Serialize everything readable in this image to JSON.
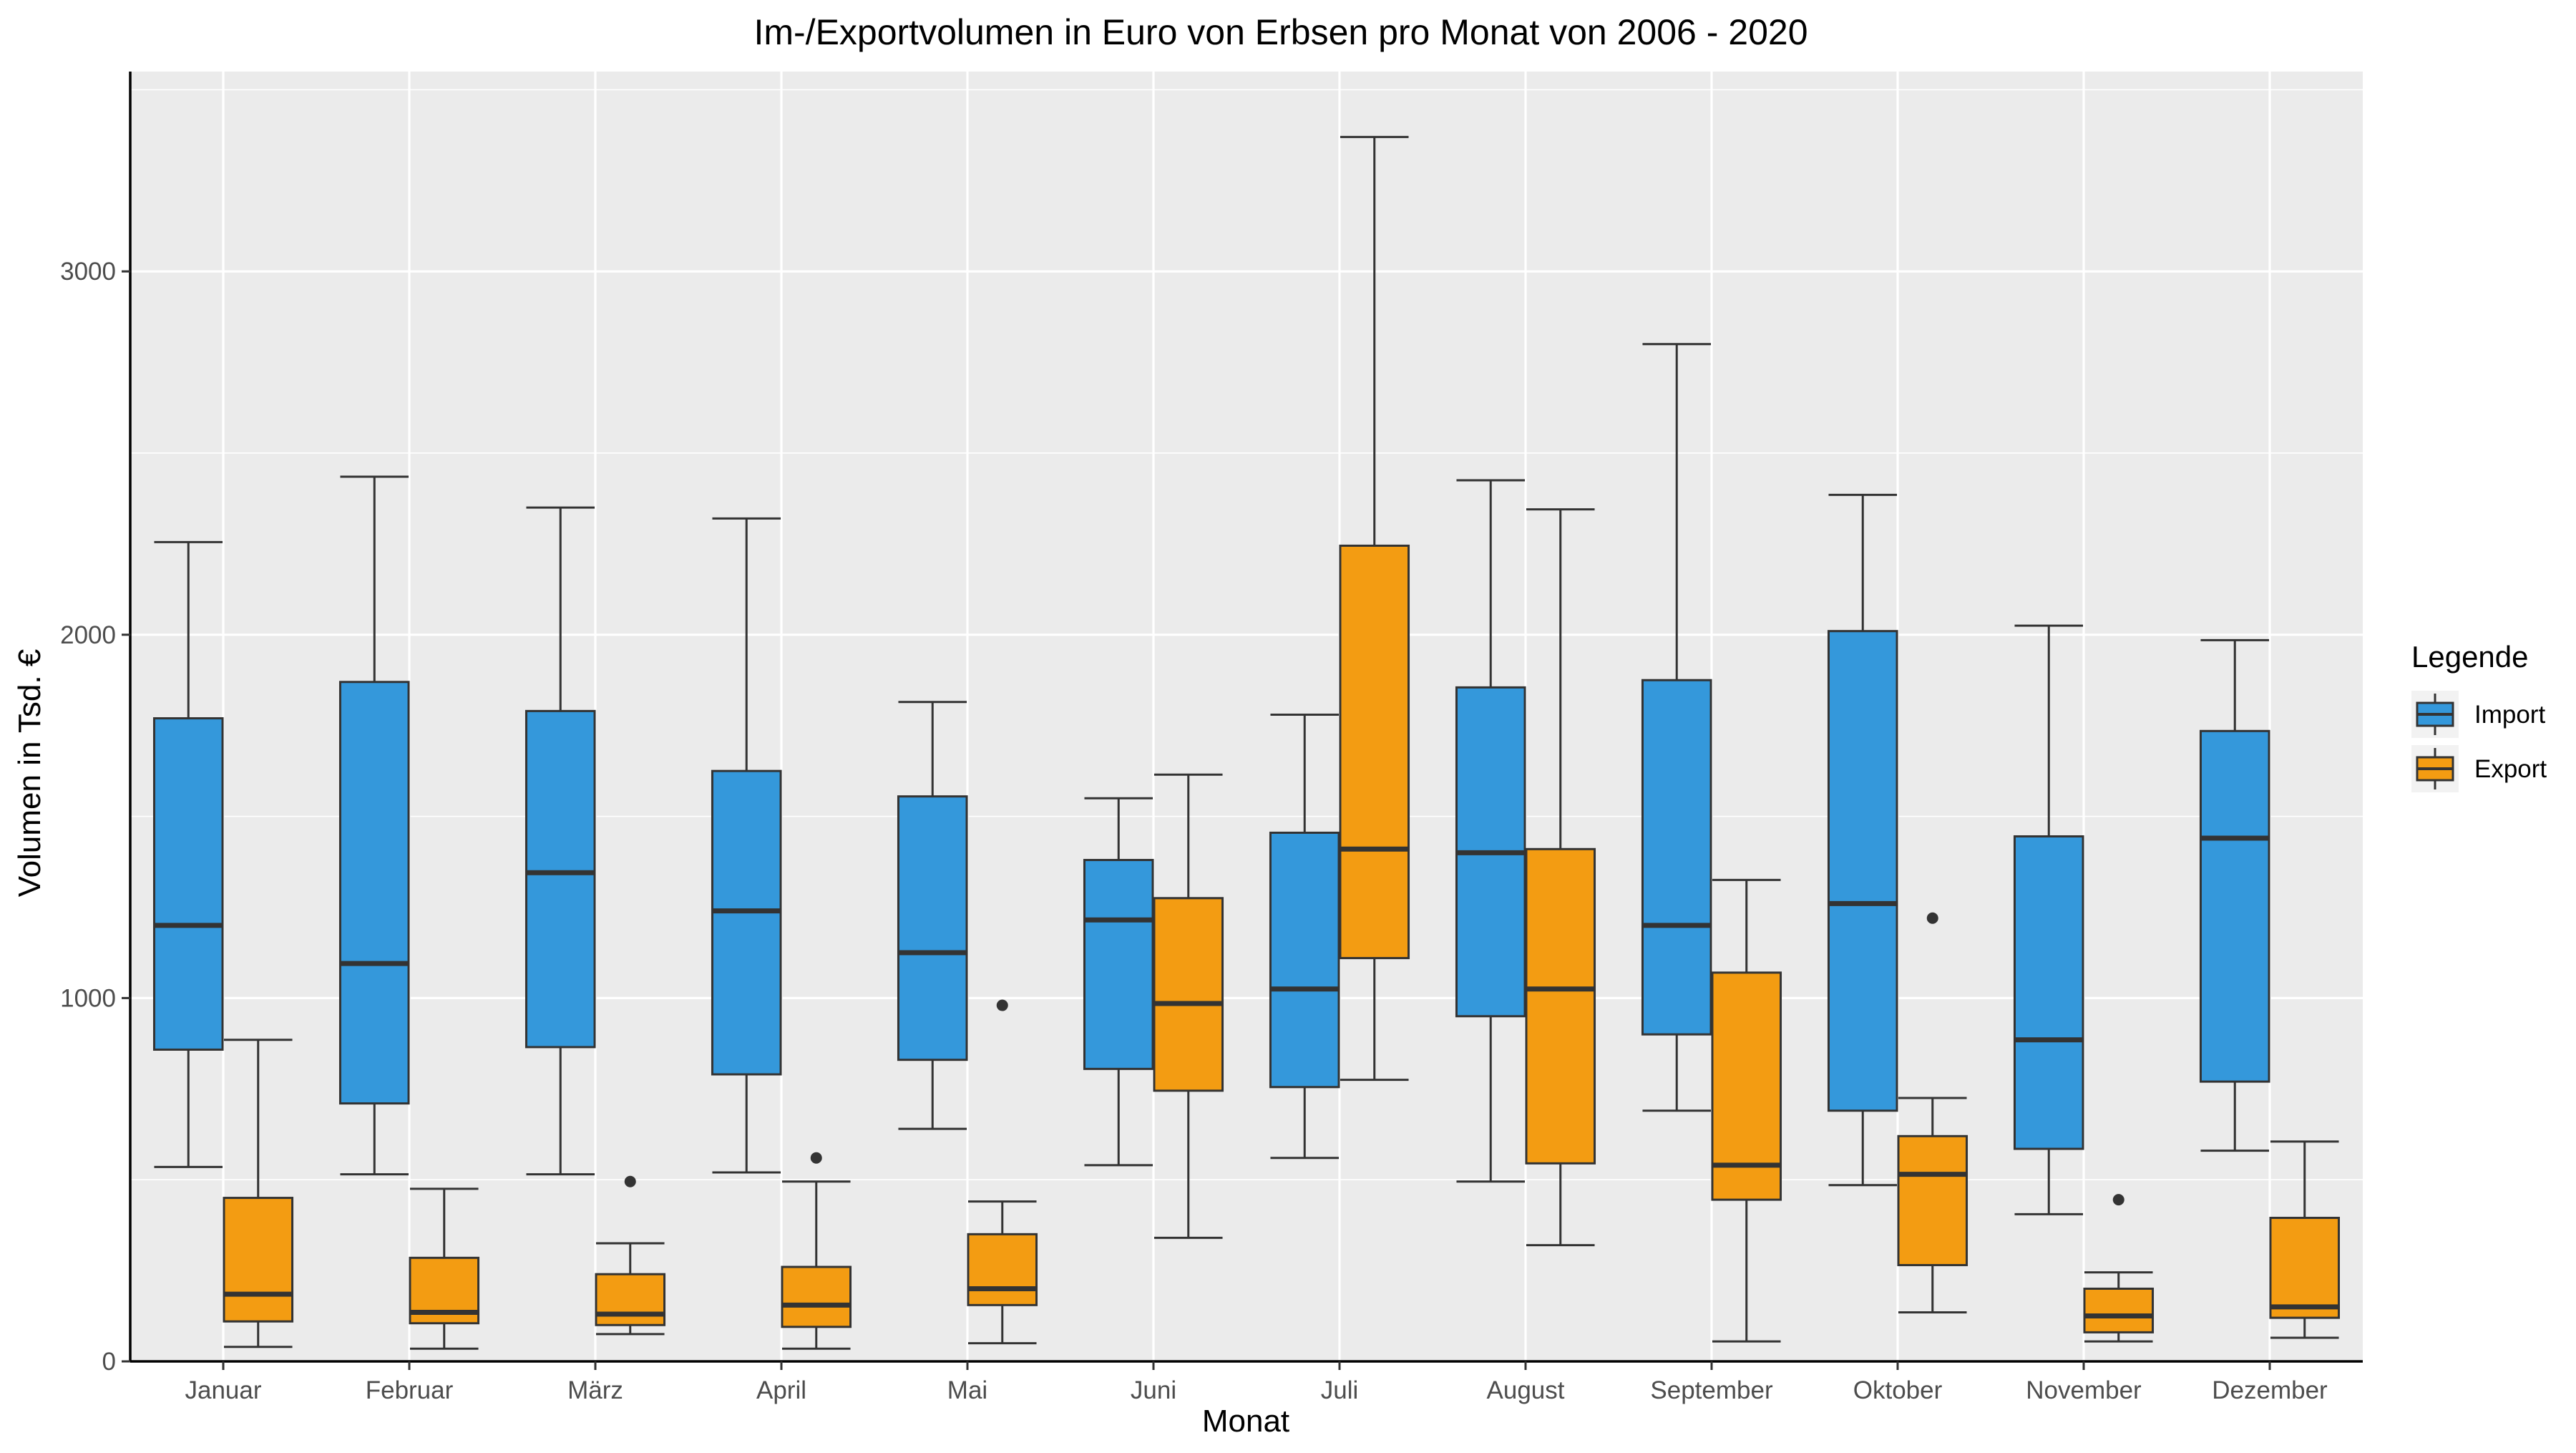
{
  "chart_data": {
    "type": "boxplot",
    "title": "Im-/Exportvolumen in Euro von Erbsen pro Monat von 2006 - 2020",
    "xlabel": "Monat",
    "ylabel": "Volumen in Tsd. €",
    "ylim": [
      0,
      3550
    ],
    "yticks": [
      0,
      1000,
      2000,
      3000
    ],
    "grid": true,
    "legend": {
      "title": "Legende",
      "position": "right",
      "entries": [
        "Import",
        "Export"
      ]
    },
    "categories": [
      "Januar",
      "Februar",
      "März",
      "April",
      "Mai",
      "Juni",
      "Juli",
      "August",
      "September",
      "Oktober",
      "November",
      "Dezember"
    ],
    "series": [
      {
        "name": "Import",
        "color": "#3498db",
        "boxes": [
          {
            "min": 535,
            "q1": 858,
            "median": 1200,
            "q3": 1770,
            "max": 2255,
            "outliers": []
          },
          {
            "min": 515,
            "q1": 710,
            "median": 1095,
            "q3": 1870,
            "max": 2435,
            "outliers": []
          },
          {
            "min": 515,
            "q1": 865,
            "median": 1345,
            "q3": 1790,
            "max": 2350,
            "outliers": []
          },
          {
            "min": 520,
            "q1": 790,
            "median": 1240,
            "q3": 1625,
            "max": 2320,
            "outliers": []
          },
          {
            "min": 640,
            "q1": 830,
            "median": 1125,
            "q3": 1555,
            "max": 1815,
            "outliers": []
          },
          {
            "min": 540,
            "q1": 805,
            "median": 1215,
            "q3": 1380,
            "max": 1550,
            "outliers": []
          },
          {
            "min": 560,
            "q1": 755,
            "median": 1025,
            "q3": 1455,
            "max": 1780,
            "outliers": []
          },
          {
            "min": 495,
            "q1": 950,
            "median": 1400,
            "q3": 1855,
            "max": 2425,
            "outliers": []
          },
          {
            "min": 690,
            "q1": 900,
            "median": 1200,
            "q3": 1875,
            "max": 2800,
            "outliers": []
          },
          {
            "min": 485,
            "q1": 690,
            "median": 1260,
            "q3": 2010,
            "max": 2385,
            "outliers": []
          },
          {
            "min": 405,
            "q1": 585,
            "median": 885,
            "q3": 1445,
            "max": 2025,
            "outliers": []
          },
          {
            "min": 580,
            "q1": 770,
            "median": 1440,
            "q3": 1735,
            "max": 1985,
            "outliers": []
          }
        ]
      },
      {
        "name": "Export",
        "color": "#f39c12",
        "boxes": [
          {
            "min": 40,
            "q1": 110,
            "median": 185,
            "q3": 450,
            "max": 885,
            "outliers": []
          },
          {
            "min": 35,
            "q1": 105,
            "median": 135,
            "q3": 285,
            "max": 475,
            "outliers": []
          },
          {
            "min": 75,
            "q1": 100,
            "median": 130,
            "q3": 240,
            "max": 325,
            "outliers": [
              495
            ]
          },
          {
            "min": 35,
            "q1": 95,
            "median": 155,
            "q3": 260,
            "max": 495,
            "outliers": [
              560
            ]
          },
          {
            "min": 50,
            "q1": 155,
            "median": 200,
            "q3": 350,
            "max": 440,
            "outliers": [
              980
            ]
          },
          {
            "min": 340,
            "q1": 745,
            "median": 985,
            "q3": 1275,
            "max": 1615,
            "outliers": []
          },
          {
            "min": 775,
            "q1": 1110,
            "median": 1410,
            "q3": 2245,
            "max": 3370,
            "outliers": []
          },
          {
            "min": 320,
            "q1": 545,
            "median": 1025,
            "q3": 1410,
            "max": 2345,
            "outliers": []
          },
          {
            "min": 55,
            "q1": 445,
            "median": 540,
            "q3": 1070,
            "max": 1325,
            "outliers": []
          },
          {
            "min": 135,
            "q1": 265,
            "median": 515,
            "q3": 620,
            "max": 725,
            "outliers": [
              1220
            ]
          },
          {
            "min": 55,
            "q1": 80,
            "median": 125,
            "q3": 200,
            "max": 245,
            "outliers": [
              445
            ]
          },
          {
            "min": 65,
            "q1": 120,
            "median": 150,
            "q3": 395,
            "max": 605,
            "outliers": []
          }
        ]
      }
    ]
  }
}
